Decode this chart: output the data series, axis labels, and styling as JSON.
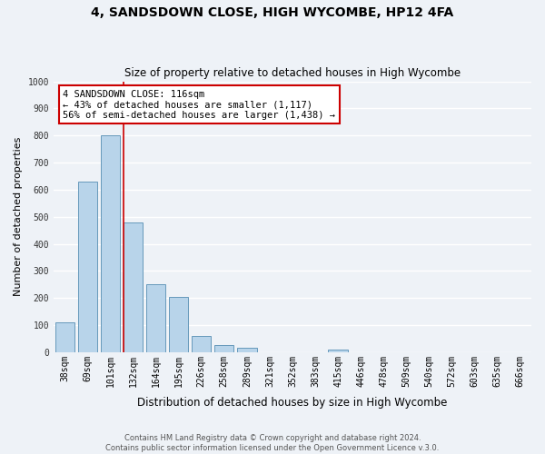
{
  "title": "4, SANDSDOWN CLOSE, HIGH WYCOMBE, HP12 4FA",
  "subtitle": "Size of property relative to detached houses in High Wycombe",
  "xlabel": "Distribution of detached houses by size in High Wycombe",
  "ylabel": "Number of detached properties",
  "bar_labels": [
    "38sqm",
    "69sqm",
    "101sqm",
    "132sqm",
    "164sqm",
    "195sqm",
    "226sqm",
    "258sqm",
    "289sqm",
    "321sqm",
    "352sqm",
    "383sqm",
    "415sqm",
    "446sqm",
    "478sqm",
    "509sqm",
    "540sqm",
    "572sqm",
    "603sqm",
    "635sqm",
    "666sqm"
  ],
  "bar_values": [
    110,
    630,
    800,
    480,
    250,
    205,
    60,
    28,
    15,
    0,
    0,
    0,
    10,
    0,
    0,
    0,
    0,
    0,
    0,
    0,
    0
  ],
  "bar_color": "#b8d4ea",
  "bar_edge_color": "#6699bb",
  "reference_line_color": "#cc0000",
  "ylim": [
    0,
    1000
  ],
  "yticks": [
    0,
    100,
    200,
    300,
    400,
    500,
    600,
    700,
    800,
    900,
    1000
  ],
  "annotation_title": "4 SANDSDOWN CLOSE: 116sqm",
  "annotation_line1": "← 43% of detached houses are smaller (1,117)",
  "annotation_line2": "56% of semi-detached houses are larger (1,438) →",
  "annotation_box_color": "#cc0000",
  "footer1": "Contains HM Land Registry data © Crown copyright and database right 2024.",
  "footer2": "Contains public sector information licensed under the Open Government Licence v.3.0.",
  "background_color": "#eef2f7",
  "grid_color": "#ffffff",
  "title_fontsize": 10,
  "subtitle_fontsize": 8.5,
  "annotation_fontsize": 7.5,
  "xlabel_fontsize": 8.5,
  "ylabel_fontsize": 8,
  "tick_fontsize": 7,
  "footer_fontsize": 6
}
